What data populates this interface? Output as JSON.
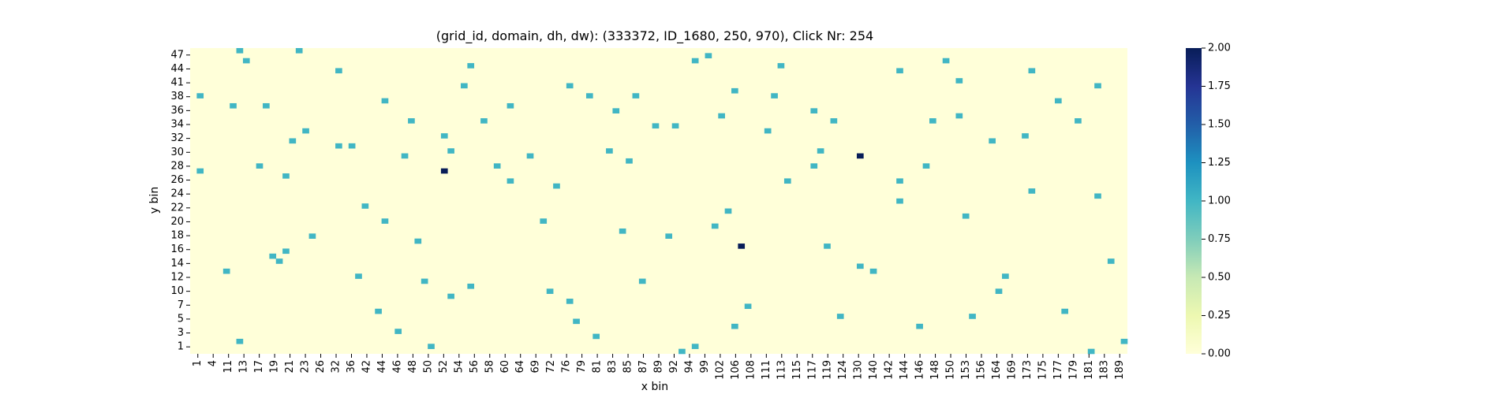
{
  "chart_data": {
    "type": "heatmap",
    "title": "(grid_id, domain, dh, dw): (333372, ID_1680, 250, 970), Click Nr: 254",
    "xlabel": "x bin",
    "ylabel": "y bin",
    "x_tick_labels": [
      "1",
      "4",
      "11",
      "13",
      "17",
      "19",
      "21",
      "23",
      "26",
      "32",
      "36",
      "42",
      "44",
      "46",
      "48",
      "50",
      "52",
      "54",
      "56",
      "58",
      "60",
      "64",
      "69",
      "72",
      "76",
      "79",
      "81",
      "83",
      "85",
      "87",
      "89",
      "92",
      "94",
      "99",
      "102",
      "106",
      "108",
      "111",
      "113",
      "115",
      "117",
      "119",
      "124",
      "130",
      "140",
      "142",
      "144",
      "146",
      "148",
      "150",
      "153",
      "156",
      "164",
      "169",
      "173",
      "175",
      "177",
      "179",
      "181",
      "183",
      "189"
    ],
    "y_tick_labels": [
      "47",
      "44",
      "41",
      "38",
      "36",
      "34",
      "32",
      "30",
      "28",
      "26",
      "24",
      "22",
      "20",
      "18",
      "16",
      "14",
      "12",
      "10",
      "7",
      "5",
      "3",
      "1"
    ],
    "colorbar": {
      "min": 0.0,
      "max": 2.0,
      "ticks": [
        "0.00",
        "0.25",
        "0.50",
        "0.75",
        "1.00",
        "1.25",
        "1.50",
        "1.75",
        "2.00"
      ]
    },
    "colorscale": "YlGnBu",
    "background_value": 0,
    "cells": [
      [
        7,
        0,
        1
      ],
      [
        16,
        0,
        1
      ],
      [
        78,
        1,
        1
      ],
      [
        8,
        2,
        1
      ],
      [
        114,
        2,
        1
      ],
      [
        76,
        2,
        1
      ],
      [
        42,
        3,
        1
      ],
      [
        89,
        3,
        1
      ],
      [
        22,
        4,
        1
      ],
      [
        107,
        4,
        1
      ],
      [
        127,
        4,
        1
      ],
      [
        116,
        6,
        1
      ],
      [
        57,
        7,
        1
      ],
      [
        137,
        7,
        1
      ],
      [
        41,
        7,
        1
      ],
      [
        82,
        8,
        1
      ],
      [
        67,
        9,
        1
      ],
      [
        60,
        9,
        1
      ],
      [
        88,
        9,
        1
      ],
      [
        1,
        9,
        1
      ],
      [
        29,
        10,
        1
      ],
      [
        131,
        10,
        1
      ],
      [
        6,
        11,
        1
      ],
      [
        48,
        11,
        1
      ],
      [
        11,
        11,
        1
      ],
      [
        94,
        12,
        1
      ],
      [
        64,
        12,
        1
      ],
      [
        116,
        13,
        1
      ],
      [
        80,
        13,
        1
      ],
      [
        44,
        14,
        1
      ],
      [
        134,
        14,
        1
      ],
      [
        33,
        14,
        1
      ],
      [
        112,
        14,
        1
      ],
      [
        97,
        14,
        1
      ],
      [
        70,
        15,
        1
      ],
      [
        73,
        15,
        1
      ],
      [
        87,
        16,
        1
      ],
      [
        17,
        16,
        1
      ],
      [
        38,
        17,
        1
      ],
      [
        126,
        17,
        1
      ],
      [
        15,
        18,
        1
      ],
      [
        121,
        18,
        1
      ],
      [
        22,
        19,
        1
      ],
      [
        24,
        19,
        1
      ],
      [
        39,
        20,
        1
      ],
      [
        63,
        20,
        1
      ],
      [
        95,
        20,
        1
      ],
      [
        32,
        21,
        1
      ],
      [
        51,
        21,
        1
      ],
      [
        66,
        22,
        1
      ],
      [
        10,
        23,
        1
      ],
      [
        46,
        23,
        1
      ],
      [
        111,
        23,
        1
      ],
      [
        94,
        23,
        1
      ],
      [
        1,
        24,
        1
      ],
      [
        14,
        25,
        1
      ],
      [
        48,
        26,
        1
      ],
      [
        107,
        26,
        1
      ],
      [
        90,
        26,
        1
      ],
      [
        55,
        27,
        1
      ],
      [
        127,
        28,
        1
      ],
      [
        137,
        29,
        1
      ],
      [
        107,
        30,
        1
      ],
      [
        26,
        31,
        1
      ],
      [
        81,
        32,
        1
      ],
      [
        117,
        33,
        1
      ],
      [
        29,
        34,
        1
      ],
      [
        53,
        34,
        1
      ],
      [
        79,
        35,
        1
      ],
      [
        65,
        36,
        1
      ],
      [
        72,
        37,
        1
      ],
      [
        18,
        37,
        1
      ],
      [
        34,
        38,
        1
      ],
      [
        96,
        39,
        1
      ],
      [
        14,
        40,
        1
      ],
      [
        12,
        41,
        1
      ],
      [
        13,
        42,
        1
      ],
      [
        139,
        42,
        1
      ],
      [
        101,
        43,
        1
      ],
      [
        5,
        44,
        1
      ],
      [
        103,
        44,
        1
      ],
      [
        25,
        45,
        1
      ],
      [
        123,
        45,
        1
      ],
      [
        35,
        46,
        1
      ],
      [
        68,
        46,
        1
      ],
      [
        42,
        47,
        1
      ],
      [
        54,
        48,
        1
      ],
      [
        122,
        48,
        1
      ],
      [
        39,
        49,
        1
      ],
      [
        57,
        50,
        1
      ],
      [
        84,
        51,
        1
      ],
      [
        28,
        52,
        1
      ],
      [
        132,
        52,
        1
      ],
      [
        98,
        53,
        1
      ],
      [
        118,
        53,
        1
      ],
      [
        58,
        54,
        1
      ],
      [
        82,
        55,
        1
      ],
      [
        110,
        55,
        1
      ],
      [
        31,
        56,
        1
      ],
      [
        61,
        57,
        1
      ],
      [
        7,
        58,
        1
      ],
      [
        141,
        58,
        1
      ],
      [
        36,
        59,
        1
      ],
      [
        76,
        59,
        1
      ],
      [
        74,
        60,
        1
      ],
      [
        136,
        60,
        1
      ],
      [
        38,
        24,
        2
      ],
      [
        83,
        39,
        2
      ],
      [
        101,
        21,
        2
      ]
    ]
  }
}
